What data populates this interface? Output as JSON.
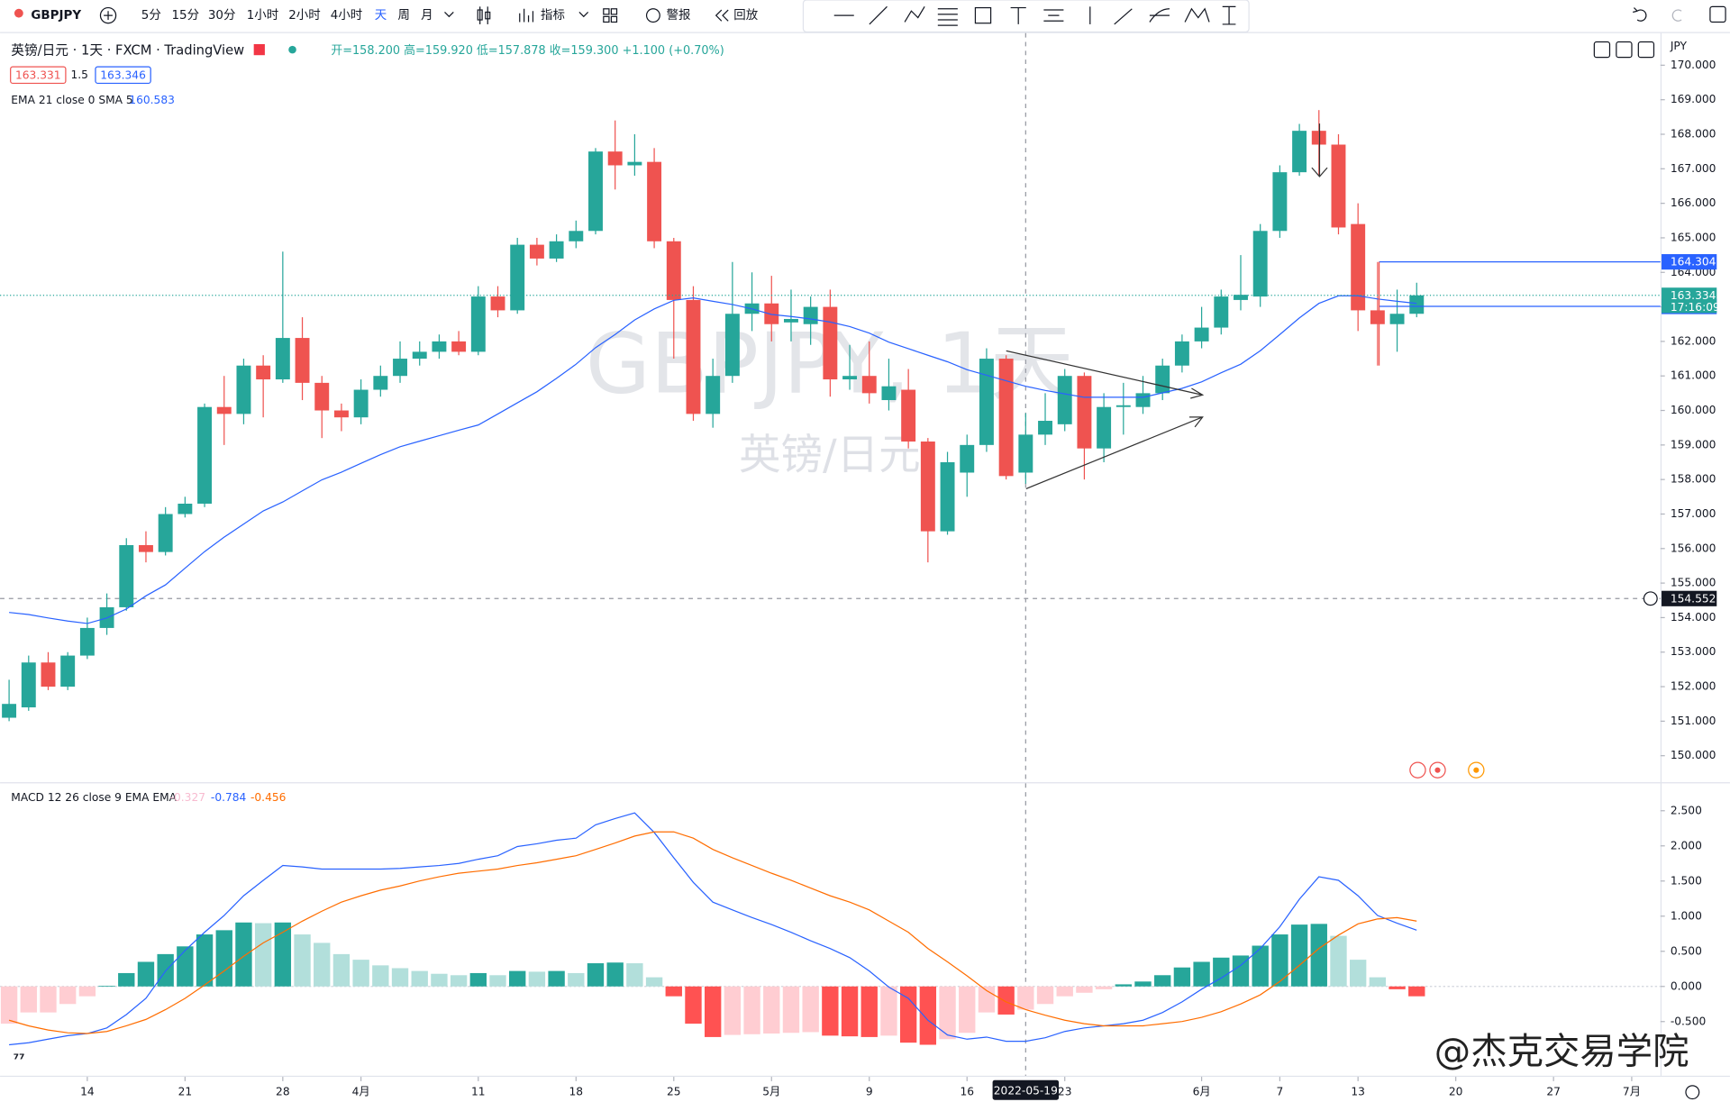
{
  "toolbar": {
    "symbol": "GBPJPY",
    "intervals": [
      "5分",
      "15分",
      "30分",
      "1小时",
      "2小时",
      "4小时",
      "天",
      "周",
      "月"
    ],
    "indicators": "指标",
    "alert": "警报",
    "replay": "回放"
  },
  "brand": "@杰克交易学院",
  "chart_data": [
    {
      "type": "candlestick",
      "title": "英镑/日元 · 1天 · FXCM · TradingView",
      "ohlc_legend": "开=158.200 高=159.920 低=157.878 收=159.300 +1.100 (+0.70%)",
      "bid": 163.331,
      "spread": 1.5,
      "ask": 163.346,
      "watermark": "GBPJPY, 1天",
      "watermark_sub": "英镑/日元",
      "currency": "JPY",
      "up_color": "#26a69a",
      "down_color": "#ef5350",
      "categories": [
        "2022-03-08",
        "2022-03-09",
        "2022-03-10",
        "2022-03-11",
        "2022-03-14",
        "2022-03-15",
        "2022-03-16",
        "2022-03-17",
        "2022-03-18",
        "2022-03-21",
        "2022-03-22",
        "2022-03-23",
        "2022-03-24",
        "2022-03-25",
        "2022-03-28",
        "2022-03-29",
        "2022-03-30",
        "2022-03-31",
        "2022-04-01",
        "2022-04-04",
        "2022-04-05",
        "2022-04-06",
        "2022-04-07",
        "2022-04-08",
        "2022-04-11",
        "2022-04-12",
        "2022-04-13",
        "2022-04-14",
        "2022-04-15",
        "2022-04-18",
        "2022-04-19",
        "2022-04-20",
        "2022-04-21",
        "2022-04-22",
        "2022-04-25",
        "2022-04-26",
        "2022-04-27",
        "2022-04-28",
        "2022-04-29",
        "2022-05-02",
        "2022-05-03",
        "2022-05-04",
        "2022-05-05",
        "2022-05-06",
        "2022-05-09",
        "2022-05-10",
        "2022-05-11",
        "2022-05-12",
        "2022-05-13",
        "2022-05-16",
        "2022-05-17",
        "2022-05-18",
        "2022-05-19",
        "2022-05-20",
        "2022-05-23",
        "2022-05-24",
        "2022-05-25",
        "2022-05-26",
        "2022-05-27",
        "2022-05-30",
        "2022-05-31",
        "2022-06-01",
        "2022-06-02",
        "2022-06-03",
        "2022-06-06",
        "2022-06-07",
        "2022-06-08",
        "2022-06-09",
        "2022-06-10",
        "2022-06-13",
        "2022-06-14",
        "2022-06-15",
        "2022-06-16"
      ],
      "open": [
        151.1,
        151.4,
        152.7,
        152.0,
        152.9,
        153.7,
        154.3,
        156.1,
        155.9,
        157.0,
        157.3,
        160.1,
        159.9,
        161.3,
        160.9,
        162.1,
        160.8,
        160.0,
        159.8,
        160.6,
        161.0,
        161.5,
        161.7,
        162.0,
        161.7,
        163.3,
        162.9,
        164.8,
        164.4,
        164.9,
        165.2,
        167.5,
        167.1,
        167.2,
        164.9,
        163.2,
        159.9,
        161.0,
        162.8,
        163.1,
        162.55,
        162.5,
        163.0,
        160.9,
        161.0,
        160.3,
        160.6,
        159.1,
        156.5,
        158.2,
        159.0,
        161.5,
        158.2,
        159.3,
        159.6,
        161.0,
        158.9,
        160.1,
        160.1,
        160.5,
        161.3,
        162.0,
        162.4,
        163.2,
        163.3,
        165.2,
        166.9,
        168.1,
        167.7,
        165.4,
        162.9,
        162.5,
        162.8
      ],
      "high": [
        152.2,
        152.9,
        153.0,
        153.0,
        154.0,
        154.7,
        156.3,
        156.5,
        157.2,
        157.5,
        160.2,
        161.0,
        161.5,
        161.6,
        164.6,
        162.7,
        161.0,
        160.2,
        160.9,
        161.3,
        162.0,
        162.0,
        162.2,
        162.3,
        163.6,
        163.6,
        165.0,
        165.0,
        165.1,
        165.5,
        167.6,
        168.4,
        168.0,
        167.6,
        165.0,
        163.6,
        161.5,
        164.3,
        164.0,
        163.9,
        163.5,
        163.3,
        163.5,
        161.9,
        162.0,
        161.5,
        161.2,
        159.2,
        158.8,
        159.3,
        161.8,
        161.6,
        159.92,
        160.5,
        161.2,
        161.1,
        160.5,
        160.8,
        161.0,
        161.5,
        162.2,
        163.0,
        163.5,
        164.5,
        165.4,
        167.1,
        168.3,
        168.7,
        168.0,
        166.0,
        164.3,
        163.5,
        163.7
      ],
      "low": [
        151.0,
        151.3,
        151.9,
        151.9,
        152.8,
        153.5,
        154.2,
        155.6,
        155.8,
        156.9,
        157.2,
        159.0,
        159.6,
        159.8,
        160.8,
        160.3,
        159.2,
        159.4,
        159.6,
        160.4,
        160.8,
        161.3,
        161.5,
        161.6,
        161.6,
        162.7,
        162.8,
        164.2,
        164.3,
        164.7,
        165.1,
        166.4,
        166.8,
        164.7,
        161.5,
        159.7,
        159.5,
        160.8,
        162.3,
        162.0,
        162.0,
        161.9,
        160.4,
        160.6,
        160.2,
        160.0,
        158.9,
        155.6,
        156.4,
        157.5,
        158.8,
        158.0,
        157.878,
        159.0,
        159.4,
        158.0,
        158.5,
        159.3,
        159.9,
        160.3,
        161.1,
        161.8,
        162.2,
        162.9,
        163.0,
        165.0,
        166.8,
        166.8,
        165.1,
        162.3,
        161.3,
        161.7,
        162.7
      ],
      "close": [
        151.5,
        152.7,
        152.0,
        152.9,
        153.7,
        154.3,
        156.1,
        155.9,
        157.0,
        157.3,
        160.1,
        159.9,
        161.3,
        160.9,
        162.1,
        160.8,
        160.0,
        159.8,
        160.6,
        161.0,
        161.5,
        161.7,
        162.0,
        161.7,
        163.3,
        162.9,
        164.8,
        164.4,
        164.9,
        165.2,
        167.5,
        167.1,
        167.2,
        164.9,
        163.2,
        159.9,
        161.0,
        162.8,
        163.1,
        162.5,
        162.65,
        163.0,
        160.9,
        161.0,
        160.5,
        160.7,
        159.1,
        156.5,
        158.5,
        159.0,
        161.5,
        158.1,
        159.3,
        159.7,
        161.0,
        158.9,
        160.1,
        160.15,
        160.5,
        161.3,
        162.0,
        162.4,
        163.3,
        163.35,
        165.2,
        166.9,
        168.1,
        167.7,
        165.3,
        162.9,
        162.5,
        162.8,
        163.334
      ],
      "series": [
        {
          "name": "EMA 21 close 0 SMA 5",
          "value_label": "160.583",
          "color": "#2962ff",
          "values": [
            154.15,
            154.09,
            153.99,
            153.9,
            153.83,
            153.99,
            154.25,
            154.63,
            154.95,
            155.43,
            155.91,
            156.33,
            156.71,
            157.09,
            157.35,
            157.67,
            157.99,
            158.21,
            158.47,
            158.72,
            158.95,
            159.11,
            159.27,
            159.43,
            159.58,
            159.9,
            160.22,
            160.54,
            160.93,
            161.34,
            161.82,
            162.2,
            162.62,
            162.94,
            163.19,
            163.26,
            163.16,
            163.07,
            162.94,
            162.78,
            162.72,
            162.65,
            162.56,
            162.43,
            162.24,
            161.98,
            161.79,
            161.6,
            161.41,
            161.18,
            161.02,
            160.86,
            160.7,
            160.58,
            160.48,
            160.38,
            160.38,
            160.38,
            160.38,
            160.51,
            160.64,
            160.83,
            161.09,
            161.34,
            161.73,
            162.2,
            162.68,
            163.1,
            163.32,
            163.32,
            163.23,
            163.16,
            163.1
          ]
        }
      ],
      "ylim": [
        149.2,
        170.93
      ],
      "yticks": [
        {
          "value": 150,
          "label": "150.000"
        },
        {
          "value": 151,
          "label": "151.000"
        },
        {
          "value": 152,
          "label": "152.000"
        },
        {
          "value": 153,
          "label": "153.000"
        },
        {
          "value": 154,
          "label": "154.000"
        },
        {
          "value": 155,
          "label": "155.000"
        },
        {
          "value": 156,
          "label": "156.000"
        },
        {
          "value": 157,
          "label": "157.000"
        },
        {
          "value": 158,
          "label": "158.000"
        },
        {
          "value": 159,
          "label": "159.000"
        },
        {
          "value": 160,
          "label": "160.000"
        },
        {
          "value": 161,
          "label": "161.000"
        },
        {
          "value": 162,
          "label": "162.000"
        },
        {
          "value": 163,
          "label": "163.000"
        },
        {
          "value": 164,
          "label": "164.000"
        },
        {
          "value": 165,
          "label": "165.000"
        },
        {
          "value": 166,
          "label": "166.000"
        },
        {
          "value": 167,
          "label": "167.000"
        },
        {
          "value": 168,
          "label": "168.000"
        },
        {
          "value": 169,
          "label": "169.000"
        },
        {
          "value": 170,
          "label": "170.000"
        }
      ],
      "xticks": [
        {
          "value": "2022-03-14",
          "label": "14"
        },
        {
          "value": "2022-03-21",
          "label": "21"
        },
        {
          "value": "2022-03-28",
          "label": "28"
        },
        {
          "value": "2022-04-01",
          "label": "4月"
        },
        {
          "value": "2022-04-11",
          "label": "11"
        },
        {
          "value": "2022-04-18",
          "label": "18"
        },
        {
          "value": "2022-04-25",
          "label": "25"
        },
        {
          "value": "2022-05-02",
          "label": "5月"
        },
        {
          "value": "2022-05-09",
          "label": "9"
        },
        {
          "value": "2022-05-16",
          "label": "16"
        },
        {
          "value": "2022-05-23",
          "label": "23"
        },
        {
          "value": "2022-06-01",
          "label": "6月"
        },
        {
          "value": "2022-06-07",
          "label": "7"
        },
        {
          "value": "2022-06-13",
          "label": "13"
        },
        {
          "value": "2022-06-20",
          "label": "20"
        },
        {
          "value": "2022-06-27",
          "label": "27"
        },
        {
          "value": "2022-07-01",
          "label": "7月"
        }
      ],
      "price_lines": [
        {
          "value": 164.304,
          "color": "#2962ff"
        },
        {
          "value": 163.014,
          "color": "#2962ff"
        }
      ],
      "last_price": {
        "value": 163.334,
        "countdown": "17:16:09",
        "color": "#26a69a"
      },
      "crosshair": {
        "x": "2022-05-19",
        "y": 154.552
      }
    },
    {
      "type": "macd",
      "title": "MACD 12 26 close 9 EMA EMA",
      "colors": {
        "up": "#26a69a",
        "up_fading": "#b2dfdb",
        "down": "#ff5252",
        "down_fading": "#ffcdd2"
      },
      "series": [
        {
          "value_label": "-0.327",
          "color": "#f8bbd0",
          "values": [
            -0.53,
            -0.37,
            -0.37,
            -0.25,
            -0.14,
            0.01,
            0.19,
            0.35,
            0.46,
            0.57,
            0.74,
            0.8,
            0.91,
            0.9,
            0.91,
            0.74,
            0.62,
            0.46,
            0.38,
            0.3,
            0.26,
            0.22,
            0.18,
            0.16,
            0.19,
            0.16,
            0.22,
            0.21,
            0.22,
            0.19,
            0.33,
            0.34,
            0.33,
            0.13,
            -0.14,
            -0.53,
            -0.72,
            -0.69,
            -0.68,
            -0.67,
            -0.66,
            -0.65,
            -0.7,
            -0.71,
            -0.72,
            -0.7,
            -0.8,
            -0.83,
            -0.75,
            -0.66,
            -0.37,
            -0.4,
            -0.33,
            -0.25,
            -0.14,
            -0.09,
            -0.04,
            0.03,
            0.07,
            0.16,
            0.27,
            0.35,
            0.41,
            0.44,
            0.58,
            0.74,
            0.88,
            0.89,
            0.72,
            0.38,
            0.13,
            -0.04,
            -0.14
          ]
        },
        {
          "value_label": "-0.784",
          "color": "#2962ff",
          "values": [
            -0.83,
            -0.8,
            -0.75,
            -0.7,
            -0.67,
            -0.59,
            -0.4,
            -0.17,
            0.22,
            0.51,
            0.77,
            1.01,
            1.29,
            1.51,
            1.72,
            1.7,
            1.67,
            1.67,
            1.67,
            1.67,
            1.68,
            1.7,
            1.72,
            1.75,
            1.81,
            1.86,
            1.99,
            2.03,
            2.08,
            2.11,
            2.3,
            2.39,
            2.47,
            2.19,
            1.83,
            1.48,
            1.2,
            1.09,
            0.98,
            0.88,
            0.77,
            0.65,
            0.54,
            0.41,
            0.22,
            -0.01,
            -0.17,
            -0.48,
            -0.69,
            -0.75,
            -0.72,
            -0.78,
            -0.78,
            -0.73,
            -0.64,
            -0.59,
            -0.56,
            -0.53,
            -0.48,
            -0.37,
            -0.22,
            -0.04,
            0.12,
            0.3,
            0.54,
            0.85,
            1.24,
            1.56,
            1.51,
            1.29,
            1.01,
            0.9,
            0.8
          ]
        },
        {
          "value_label": "-0.456",
          "color": "#ff6d00",
          "values": [
            -0.48,
            -0.56,
            -0.62,
            -0.66,
            -0.67,
            -0.64,
            -0.56,
            -0.47,
            -0.33,
            -0.17,
            0.02,
            0.22,
            0.43,
            0.62,
            0.77,
            0.93,
            1.07,
            1.2,
            1.29,
            1.37,
            1.43,
            1.5,
            1.56,
            1.61,
            1.64,
            1.67,
            1.72,
            1.76,
            1.81,
            1.86,
            1.95,
            2.04,
            2.14,
            2.2,
            2.2,
            2.11,
            1.95,
            1.83,
            1.72,
            1.61,
            1.51,
            1.4,
            1.29,
            1.2,
            1.09,
            0.93,
            0.77,
            0.54,
            0.35,
            0.15,
            -0.06,
            -0.22,
            -0.33,
            -0.41,
            -0.48,
            -0.53,
            -0.56,
            -0.56,
            -0.56,
            -0.53,
            -0.5,
            -0.44,
            -0.36,
            -0.25,
            -0.12,
            0.07,
            0.3,
            0.54,
            0.73,
            0.89,
            0.96,
            0.98,
            0.93
          ]
        }
      ],
      "ylim": [
        -1.27,
        2.89
      ],
      "yticks": [
        {
          "value": -0.5,
          "label": "-0.500"
        },
        {
          "value": 0,
          "label": "0.000"
        },
        {
          "value": 0.5,
          "label": "0.500"
        },
        {
          "value": 1,
          "label": "1.000"
        },
        {
          "value": 1.5,
          "label": "1.500"
        },
        {
          "value": 2,
          "label": "2.000"
        },
        {
          "value": 2.5,
          "label": "2.500"
        }
      ]
    }
  ]
}
